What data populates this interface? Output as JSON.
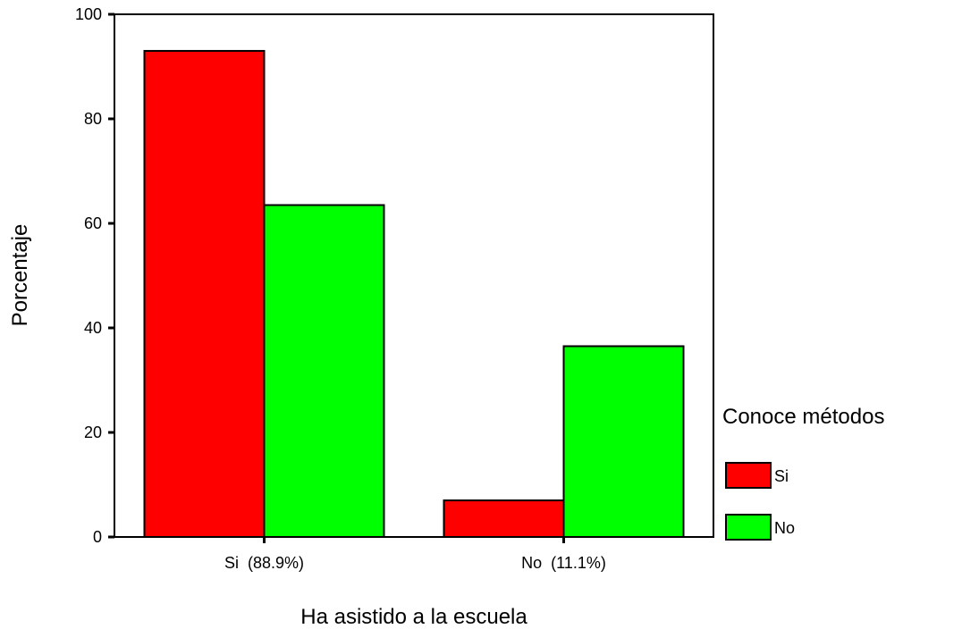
{
  "chart_data": {
    "type": "bar",
    "xlabel": "Ha asistido a la escuela",
    "ylabel": "Porcentaje",
    "ylim": [
      0,
      100
    ],
    "yticks": [
      0,
      20,
      40,
      60,
      80,
      100
    ],
    "categories": [
      "Si  (88.9%)",
      "No  (11.1%)"
    ],
    "series": [
      {
        "name": "Si",
        "color": "#ff0000",
        "values": [
          93,
          7
        ]
      },
      {
        "name": "No",
        "color": "#00ff00",
        "values": [
          63.5,
          36.5
        ]
      }
    ],
    "legend": {
      "title": "Conoce métodos",
      "position": "right"
    },
    "grid": false
  }
}
